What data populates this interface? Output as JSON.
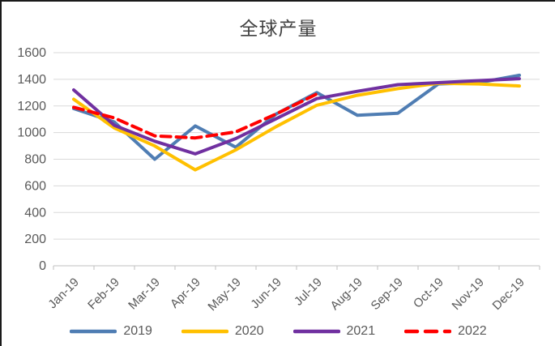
{
  "chart_data": {
    "type": "line",
    "title": "全球产量",
    "categories": [
      "Jan-19",
      "Feb-19",
      "Mar-19",
      "Apr-19",
      "May-19",
      "Jun-19",
      "Jul-19",
      "Aug-19",
      "Sep-19",
      "Oct-19",
      "Nov-19",
      "Dec-19"
    ],
    "y_ticks": [
      0,
      200,
      400,
      600,
      800,
      1000,
      1200,
      1400,
      1600
    ],
    "ylim": [
      0,
      1600
    ],
    "grid": true,
    "legend_position": "bottom",
    "series": [
      {
        "name": "2019",
        "color": "#4F7DB3",
        "dash": "solid",
        "values": [
          1180,
          1080,
          800,
          1050,
          890,
          1140,
          1300,
          1130,
          1145,
          1365,
          1375,
          1430
        ]
      },
      {
        "name": "2020",
        "color": "#FFC000",
        "dash": "solid",
        "values": [
          1250,
          1035,
          900,
          720,
          870,
          1045,
          1205,
          1280,
          1330,
          1370,
          1365,
          1350
        ]
      },
      {
        "name": "2021",
        "color": "#7030A0",
        "dash": "solid",
        "values": [
          1320,
          1055,
          935,
          840,
          955,
          1105,
          1255,
          1310,
          1360,
          1375,
          1390,
          1405
        ]
      },
      {
        "name": "2022",
        "color": "#FF0000",
        "dash": "dashed",
        "values": [
          1190,
          1110,
          975,
          960,
          1005,
          1140,
          1290,
          null,
          null,
          null,
          null,
          null
        ]
      }
    ]
  },
  "colors": {
    "axis_text": "#595959",
    "title_text": "#404040",
    "gridline": "#D9D9D9",
    "axis_line": "#BFBFBF"
  }
}
